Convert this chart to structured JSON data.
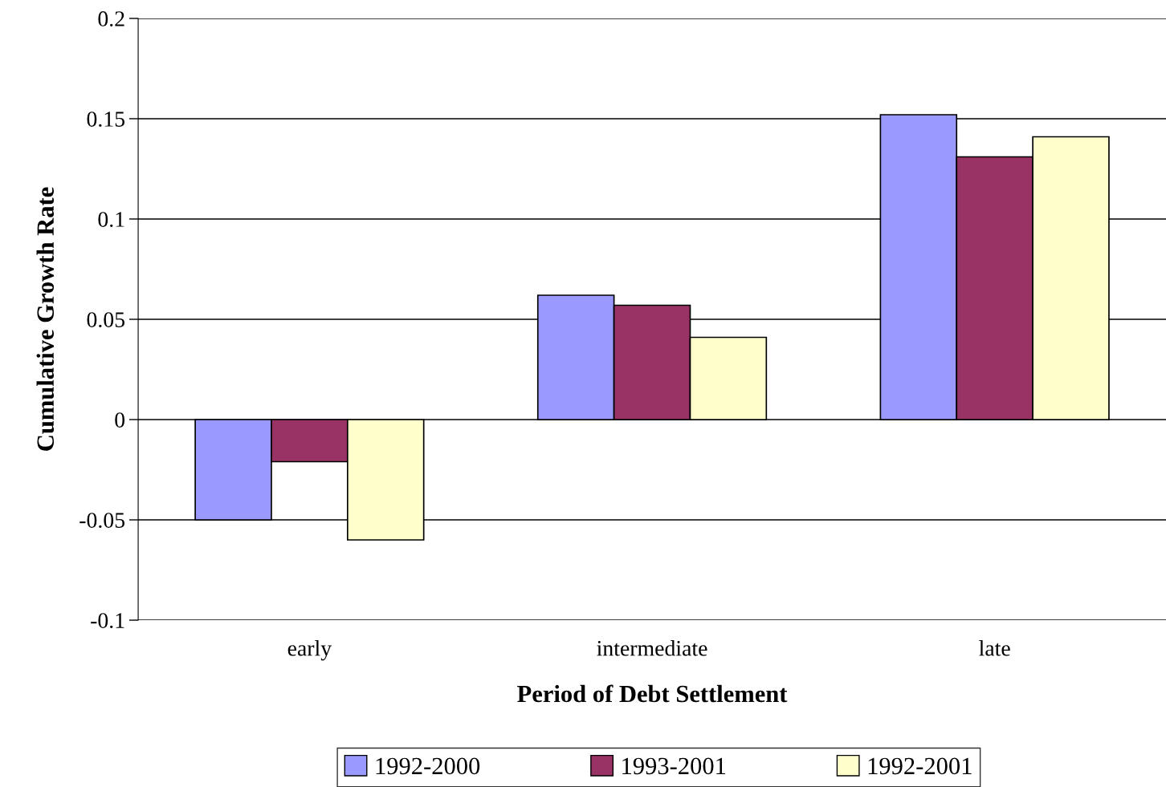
{
  "chart_data": {
    "type": "bar",
    "xlabel": "Period of Debt Settlement",
    "ylabel": "Cumulative Growth Rate",
    "categories": [
      "early",
      "intermediate",
      "late"
    ],
    "series": [
      {
        "name": "1992-2000",
        "color": "#9999ff",
        "values": [
          -0.05,
          0.062,
          0.152
        ]
      },
      {
        "name": "1993-2001",
        "color": "#993366",
        "values": [
          -0.021,
          0.057,
          0.131
        ]
      },
      {
        "name": "1992-2001",
        "color": "#ffffcc",
        "values": [
          -0.06,
          0.041,
          0.141
        ]
      }
    ],
    "ylim": [
      -0.1,
      0.2
    ],
    "yticks": [
      -0.1,
      -0.05,
      0,
      0.05,
      0.1,
      0.15,
      0.2
    ],
    "grid": "y",
    "legend": "bottom"
  }
}
